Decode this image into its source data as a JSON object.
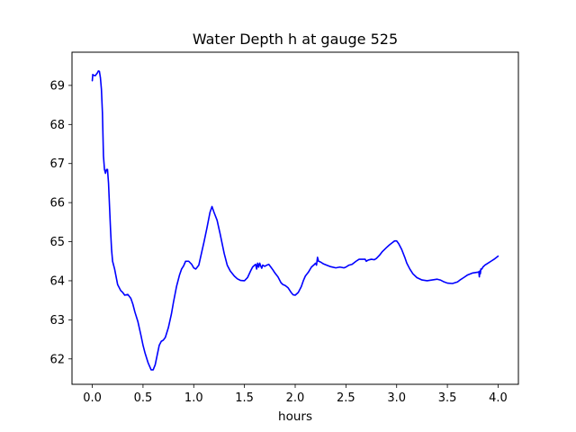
{
  "chart_data": {
    "type": "line",
    "title": "Water Depth h at gauge 525",
    "xlabel": "hours",
    "ylabel": "",
    "xlim": [
      -0.2,
      4.2
    ],
    "ylim": [
      61.35,
      69.85
    ],
    "xticks": [
      0.0,
      0.5,
      1.0,
      1.5,
      2.0,
      2.5,
      3.0,
      3.5,
      4.0
    ],
    "xtick_labels": [
      "0.0",
      "0.5",
      "1.0",
      "1.5",
      "2.0",
      "2.5",
      "3.0",
      "3.5",
      "4.0"
    ],
    "yticks": [
      62,
      63,
      64,
      65,
      66,
      67,
      68,
      69
    ],
    "ytick_labels": [
      "62",
      "63",
      "64",
      "65",
      "66",
      "67",
      "68",
      "69"
    ],
    "grid": false,
    "legend": "none",
    "series": [
      {
        "color": "#0000ff",
        "x": [
          0.0,
          0.005,
          0.01,
          0.03,
          0.05,
          0.06,
          0.07,
          0.08,
          0.09,
          0.1,
          0.11,
          0.12,
          0.13,
          0.14,
          0.15,
          0.16,
          0.17,
          0.18,
          0.19,
          0.2,
          0.22,
          0.25,
          0.28,
          0.3,
          0.32,
          0.35,
          0.38,
          0.4,
          0.42,
          0.45,
          0.48,
          0.5,
          0.52,
          0.55,
          0.58,
          0.6,
          0.62,
          0.64,
          0.66,
          0.68,
          0.7,
          0.72,
          0.75,
          0.78,
          0.8,
          0.83,
          0.86,
          0.88,
          0.9,
          0.92,
          0.95,
          0.98,
          1.0,
          1.02,
          1.05,
          1.08,
          1.1,
          1.13,
          1.16,
          1.18,
          1.2,
          1.23,
          1.26,
          1.3,
          1.33,
          1.36,
          1.4,
          1.43,
          1.46,
          1.5,
          1.53,
          1.56,
          1.58,
          1.6,
          1.61,
          1.62,
          1.63,
          1.64,
          1.65,
          1.66,
          1.67,
          1.68,
          1.7,
          1.72,
          1.74,
          1.76,
          1.78,
          1.8,
          1.83,
          1.86,
          1.88,
          1.9,
          1.93,
          1.96,
          1.98,
          2.0,
          2.03,
          2.06,
          2.08,
          2.1,
          2.13,
          2.16,
          2.19,
          2.2,
          2.21,
          2.22,
          2.23,
          2.25,
          2.28,
          2.31,
          2.35,
          2.4,
          2.44,
          2.48,
          2.5,
          2.53,
          2.56,
          2.6,
          2.63,
          2.65,
          2.67,
          2.69,
          2.7,
          2.72,
          2.75,
          2.78,
          2.8,
          2.83,
          2.86,
          2.9,
          2.93,
          2.96,
          2.98,
          3.0,
          3.02,
          3.05,
          3.08,
          3.1,
          3.13,
          3.16,
          3.2,
          3.25,
          3.3,
          3.35,
          3.4,
          3.43,
          3.46,
          3.5,
          3.55,
          3.6,
          3.63,
          3.66,
          3.7,
          3.75,
          3.8,
          3.81,
          3.815,
          3.82,
          3.825,
          3.83,
          3.84,
          3.85,
          3.87,
          3.9,
          3.93,
          3.96,
          4.0
        ],
        "y": [
          69.12,
          69.28,
          69.26,
          69.25,
          69.32,
          69.37,
          69.36,
          69.2,
          68.9,
          68.3,
          67.2,
          66.85,
          66.75,
          66.85,
          66.85,
          66.5,
          65.9,
          65.3,
          64.8,
          64.5,
          64.3,
          63.9,
          63.75,
          63.7,
          63.63,
          63.65,
          63.55,
          63.4,
          63.2,
          62.95,
          62.6,
          62.35,
          62.15,
          61.9,
          61.72,
          61.72,
          61.85,
          62.1,
          62.35,
          62.45,
          62.48,
          62.55,
          62.8,
          63.15,
          63.45,
          63.85,
          64.15,
          64.3,
          64.38,
          64.5,
          64.5,
          64.42,
          64.33,
          64.3,
          64.4,
          64.75,
          64.98,
          65.35,
          65.75,
          65.9,
          65.75,
          65.55,
          65.2,
          64.7,
          64.4,
          64.25,
          64.12,
          64.05,
          64.01,
          64.0,
          64.08,
          64.25,
          64.35,
          64.4,
          64.42,
          64.3,
          64.45,
          64.35,
          64.45,
          64.38,
          64.32,
          64.4,
          64.37,
          64.4,
          64.42,
          64.35,
          64.28,
          64.2,
          64.1,
          63.95,
          63.9,
          63.88,
          63.82,
          63.7,
          63.64,
          63.63,
          63.7,
          63.85,
          64.0,
          64.12,
          64.22,
          64.35,
          64.42,
          64.45,
          64.4,
          64.6,
          64.5,
          64.48,
          64.43,
          64.4,
          64.36,
          64.33,
          64.35,
          64.33,
          64.35,
          64.4,
          64.42,
          64.5,
          64.55,
          64.55,
          64.55,
          64.55,
          64.5,
          64.53,
          64.55,
          64.54,
          64.57,
          64.65,
          64.75,
          64.85,
          64.92,
          64.98,
          65.02,
          65.02,
          64.95,
          64.8,
          64.6,
          64.45,
          64.3,
          64.18,
          64.08,
          64.02,
          64.0,
          64.02,
          64.04,
          64.02,
          63.98,
          63.94,
          63.93,
          63.97,
          64.03,
          64.08,
          64.15,
          64.2,
          64.22,
          64.23,
          64.1,
          64.25,
          64.18,
          64.3,
          64.3,
          64.35,
          64.4,
          64.45,
          64.5,
          64.55,
          64.63
        ]
      }
    ]
  }
}
